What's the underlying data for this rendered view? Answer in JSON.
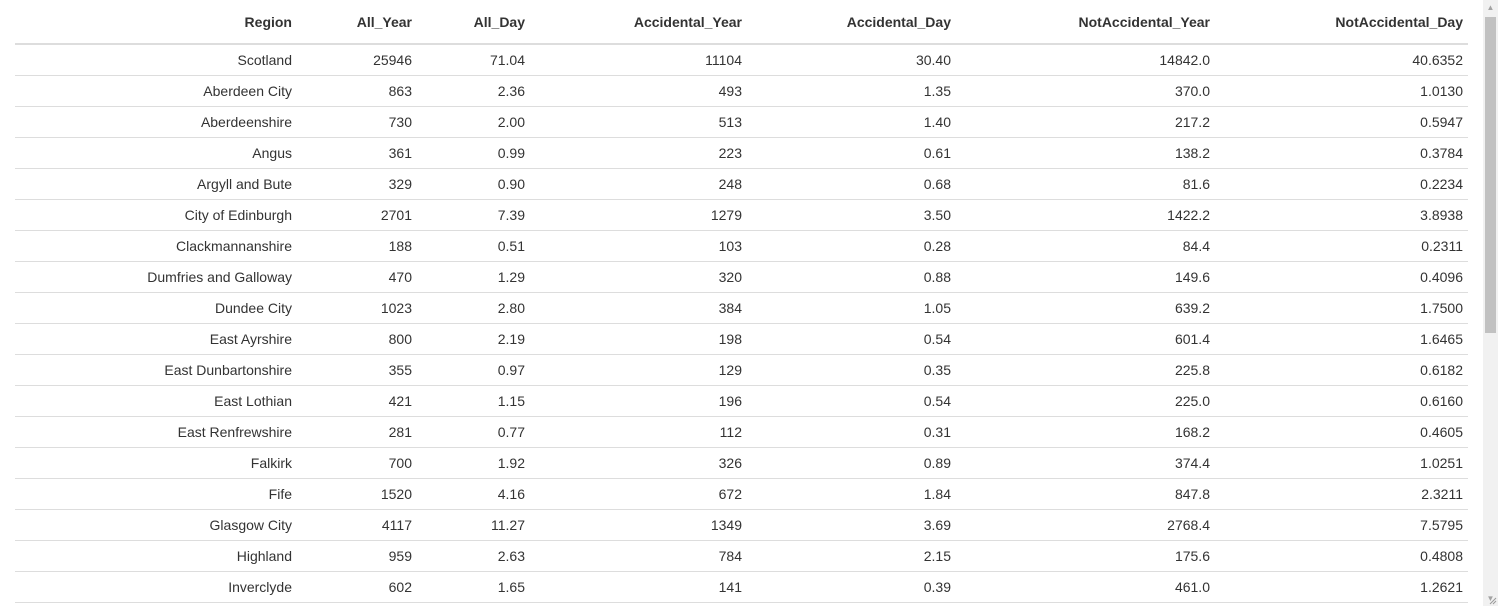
{
  "table": {
    "columns": [
      "Region",
      "All_Year",
      "All_Day",
      "Accidental_Year",
      "Accidental_Day",
      "NotAccidental_Year",
      "NotAccidental_Day"
    ],
    "rows": [
      [
        "Scotland",
        "25946",
        "71.04",
        "11104",
        "30.40",
        "14842.0",
        "40.6352"
      ],
      [
        "Aberdeen City",
        "863",
        "2.36",
        "493",
        "1.35",
        "370.0",
        "1.0130"
      ],
      [
        "Aberdeenshire",
        "730",
        "2.00",
        "513",
        "1.40",
        "217.2",
        "0.5947"
      ],
      [
        "Angus",
        "361",
        "0.99",
        "223",
        "0.61",
        "138.2",
        "0.3784"
      ],
      [
        "Argyll and Bute",
        "329",
        "0.90",
        "248",
        "0.68",
        "81.6",
        "0.2234"
      ],
      [
        "City of Edinburgh",
        "2701",
        "7.39",
        "1279",
        "3.50",
        "1422.2",
        "3.8938"
      ],
      [
        "Clackmannanshire",
        "188",
        "0.51",
        "103",
        "0.28",
        "84.4",
        "0.2311"
      ],
      [
        "Dumfries and Galloway",
        "470",
        "1.29",
        "320",
        "0.88",
        "149.6",
        "0.4096"
      ],
      [
        "Dundee City",
        "1023",
        "2.80",
        "384",
        "1.05",
        "639.2",
        "1.7500"
      ],
      [
        "East Ayrshire",
        "800",
        "2.19",
        "198",
        "0.54",
        "601.4",
        "1.6465"
      ],
      [
        "East Dunbartonshire",
        "355",
        "0.97",
        "129",
        "0.35",
        "225.8",
        "0.6182"
      ],
      [
        "East Lothian",
        "421",
        "1.15",
        "196",
        "0.54",
        "225.0",
        "0.6160"
      ],
      [
        "East Renfrewshire",
        "281",
        "0.77",
        "112",
        "0.31",
        "168.2",
        "0.4605"
      ],
      [
        "Falkirk",
        "700",
        "1.92",
        "326",
        "0.89",
        "374.4",
        "1.0251"
      ],
      [
        "Fife",
        "1520",
        "4.16",
        "672",
        "1.84",
        "847.8",
        "2.3211"
      ],
      [
        "Glasgow City",
        "4117",
        "11.27",
        "1349",
        "3.69",
        "2768.4",
        "7.5795"
      ],
      [
        "Highland",
        "959",
        "2.63",
        "784",
        "2.15",
        "175.6",
        "0.4808"
      ],
      [
        "Inverclyde",
        "602",
        "1.65",
        "141",
        "0.39",
        "461.0",
        "1.2621"
      ]
    ]
  },
  "scrollbar": {
    "up_arrow": "▲",
    "down_arrow": "▼"
  }
}
